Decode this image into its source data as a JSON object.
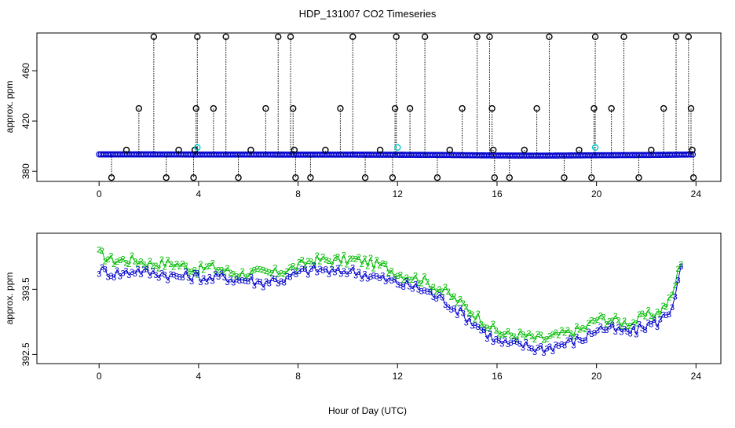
{
  "page": {
    "title": "HDP_131007  CO2 Timeseries",
    "xlabel": "Hour of Day (UTC)"
  },
  "chart_data": [
    {
      "type": "scatter",
      "title": "HDP_131007  CO2 Timeseries",
      "ylabel": "approx. ppm",
      "xlabel": "",
      "xlim": [
        -2.5,
        25
      ],
      "ylim": [
        372,
        490
      ],
      "xticks": [
        0,
        4,
        8,
        12,
        16,
        20,
        24
      ],
      "yticks": [
        380,
        420,
        460
      ],
      "grid": false,
      "colors": {
        "outlier": "#000000",
        "main": "#0000cc",
        "highlight": "#00cccc"
      },
      "baseline": [
        [
          0.0,
          393.5
        ],
        [
          2.0,
          393.5
        ],
        [
          4.0,
          393.4
        ],
        [
          6.0,
          393.4
        ],
        [
          8.0,
          393.3
        ],
        [
          10.0,
          393.3
        ],
        [
          12.0,
          393.2
        ],
        [
          14.0,
          393.0
        ],
        [
          16.0,
          392.6
        ],
        [
          18.0,
          392.5
        ],
        [
          20.0,
          392.8
        ],
        [
          22.0,
          393.0
        ],
        [
          23.9,
          393.4
        ]
      ],
      "outliers": [
        [
          0.5,
          375
        ],
        [
          1.1,
          397
        ],
        [
          1.6,
          430
        ],
        [
          2.2,
          487
        ],
        [
          2.7,
          375
        ],
        [
          3.2,
          397
        ],
        [
          3.8,
          375
        ],
        [
          3.85,
          397
        ],
        [
          3.9,
          430
        ],
        [
          3.95,
          487
        ],
        [
          4.6,
          430
        ],
        [
          5.1,
          487
        ],
        [
          5.6,
          375
        ],
        [
          6.1,
          397
        ],
        [
          6.7,
          430
        ],
        [
          7.2,
          487
        ],
        [
          7.7,
          487
        ],
        [
          7.8,
          430
        ],
        [
          7.85,
          397
        ],
        [
          7.9,
          375
        ],
        [
          8.5,
          375
        ],
        [
          9.1,
          397
        ],
        [
          9.7,
          430
        ],
        [
          10.2,
          487
        ],
        [
          10.7,
          375
        ],
        [
          11.3,
          397
        ],
        [
          11.8,
          375
        ],
        [
          11.9,
          430
        ],
        [
          11.95,
          487
        ],
        [
          12.5,
          430
        ],
        [
          13.1,
          487
        ],
        [
          13.6,
          375
        ],
        [
          14.1,
          397
        ],
        [
          14.6,
          430
        ],
        [
          15.2,
          487
        ],
        [
          15.7,
          487
        ],
        [
          15.8,
          430
        ],
        [
          15.85,
          397
        ],
        [
          15.9,
          375
        ],
        [
          16.5,
          375
        ],
        [
          17.1,
          397
        ],
        [
          17.6,
          430
        ],
        [
          18.1,
          487
        ],
        [
          18.7,
          375
        ],
        [
          19.3,
          397
        ],
        [
          19.8,
          375
        ],
        [
          19.9,
          430
        ],
        [
          19.95,
          487
        ],
        [
          20.6,
          430
        ],
        [
          21.1,
          487
        ],
        [
          21.7,
          375
        ],
        [
          22.2,
          397
        ],
        [
          22.7,
          430
        ],
        [
          23.2,
          487
        ],
        [
          23.7,
          487
        ],
        [
          23.8,
          430
        ],
        [
          23.85,
          397
        ],
        [
          23.9,
          375
        ]
      ],
      "highlights": [
        [
          3.95,
          399
        ],
        [
          12.0,
          399
        ],
        [
          19.95,
          399
        ]
      ]
    },
    {
      "type": "scatter",
      "ylabel": "approx. ppm",
      "xlabel": "Hour of Day (UTC)",
      "xlim": [
        -2.5,
        25
      ],
      "ylim": [
        392.36,
        394.36
      ],
      "xticks": [
        0,
        4,
        8,
        12,
        16,
        20,
        24
      ],
      "yticks": [
        392.5,
        393.5
      ],
      "grid": false,
      "markers": [
        "2",
        "3"
      ],
      "colors": {
        "series_2": "#00bb00",
        "series_3": "#0000cc"
      },
      "series": [
        {
          "marker": "2",
          "points": [
            [
              0.0,
              394.05
            ],
            [
              0.5,
              393.95
            ],
            [
              1.0,
              393.95
            ],
            [
              1.5,
              393.95
            ],
            [
              2.0,
              393.9
            ],
            [
              2.5,
              393.9
            ],
            [
              3.0,
              393.9
            ],
            [
              3.5,
              393.85
            ],
            [
              4.0,
              393.8
            ],
            [
              4.5,
              393.85
            ],
            [
              5.0,
              393.8
            ],
            [
              5.5,
              393.75
            ],
            [
              6.0,
              393.75
            ],
            [
              6.5,
              393.75
            ],
            [
              7.0,
              393.75
            ],
            [
              7.5,
              393.8
            ],
            [
              8.0,
              393.85
            ],
            [
              8.5,
              393.95
            ],
            [
              9.0,
              393.95
            ],
            [
              9.5,
              393.95
            ],
            [
              10.0,
              393.95
            ],
            [
              10.5,
              393.95
            ],
            [
              11.0,
              393.9
            ],
            [
              11.5,
              393.85
            ],
            [
              12.0,
              393.75
            ],
            [
              12.5,
              393.7
            ],
            [
              13.0,
              393.65
            ],
            [
              13.5,
              393.55
            ],
            [
              14.0,
              393.45
            ],
            [
              14.5,
              393.3
            ],
            [
              15.0,
              393.15
            ],
            [
              15.5,
              393.0
            ],
            [
              16.0,
              392.85
            ],
            [
              16.5,
              392.8
            ],
            [
              17.0,
              392.8
            ],
            [
              17.5,
              392.75
            ],
            [
              18.0,
              392.75
            ],
            [
              18.5,
              392.8
            ],
            [
              19.0,
              392.85
            ],
            [
              19.5,
              392.9
            ],
            [
              20.0,
              393.05
            ],
            [
              20.5,
              393.05
            ],
            [
              21.0,
              393.0
            ],
            [
              21.5,
              393.0
            ],
            [
              22.0,
              393.1
            ],
            [
              22.5,
              393.15
            ],
            [
              23.0,
              393.35
            ],
            [
              23.5,
              394.1
            ]
          ]
        },
        {
          "marker": "3",
          "points": [
            [
              0.0,
              393.8
            ],
            [
              0.5,
              393.75
            ],
            [
              1.0,
              393.75
            ],
            [
              1.5,
              393.8
            ],
            [
              2.0,
              393.75
            ],
            [
              2.5,
              393.75
            ],
            [
              3.0,
              393.7
            ],
            [
              3.5,
              393.7
            ],
            [
              4.0,
              393.7
            ],
            [
              4.5,
              393.65
            ],
            [
              5.0,
              393.7
            ],
            [
              5.5,
              393.65
            ],
            [
              6.0,
              393.65
            ],
            [
              6.5,
              393.6
            ],
            [
              7.0,
              393.65
            ],
            [
              7.5,
              393.65
            ],
            [
              8.0,
              393.75
            ],
            [
              8.5,
              393.8
            ],
            [
              9.0,
              393.8
            ],
            [
              9.5,
              393.75
            ],
            [
              10.0,
              393.8
            ],
            [
              10.5,
              393.75
            ],
            [
              11.0,
              393.7
            ],
            [
              11.5,
              393.65
            ],
            [
              12.0,
              393.6
            ],
            [
              12.5,
              393.55
            ],
            [
              13.0,
              393.5
            ],
            [
              13.5,
              393.4
            ],
            [
              14.0,
              393.3
            ],
            [
              14.5,
              393.15
            ],
            [
              15.0,
              393.0
            ],
            [
              15.5,
              392.85
            ],
            [
              16.0,
              392.7
            ],
            [
              16.5,
              392.65
            ],
            [
              17.0,
              392.65
            ],
            [
              17.5,
              392.6
            ],
            [
              18.0,
              392.6
            ],
            [
              18.5,
              392.65
            ],
            [
              19.0,
              392.7
            ],
            [
              19.5,
              392.75
            ],
            [
              20.0,
              392.9
            ],
            [
              20.5,
              392.9
            ],
            [
              21.0,
              392.85
            ],
            [
              21.5,
              392.85
            ],
            [
              22.0,
              392.95
            ],
            [
              22.5,
              393.0
            ],
            [
              23.0,
              393.2
            ],
            [
              23.5,
              393.95
            ]
          ]
        }
      ]
    }
  ]
}
